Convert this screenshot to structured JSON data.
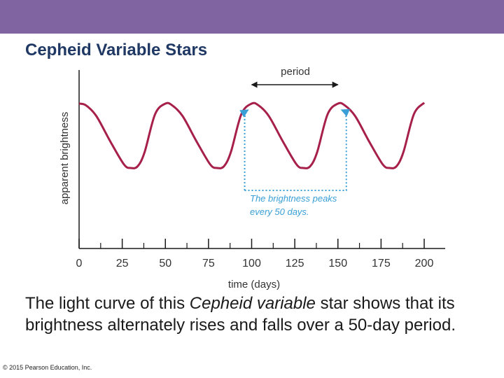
{
  "slide": {
    "title": "Cepheid Variable Stars",
    "caption": {
      "before": "The light curve of this ",
      "italic": "Cepheid variable",
      "after": " star shows that its brightness alternately rises and falls over a 50-day period."
    },
    "copyright": "© 2015 Pearson Education, Inc.",
    "colors": {
      "header_bar": "#8064a2",
      "title": "#1f3864",
      "curve": "#a6204a",
      "annotation": "#3a9fd6"
    }
  },
  "chart_data": {
    "type": "line",
    "title": "",
    "xlabel": "time (days)",
    "ylabel": "apparent brightness",
    "xlim": [
      0,
      205
    ],
    "ylim": [
      0,
      1
    ],
    "xticks": [
      0,
      25,
      50,
      75,
      100,
      125,
      150,
      175,
      200
    ],
    "minor_xticks": [
      12.5,
      37.5,
      62.5,
      87.5,
      112.5,
      137.5,
      162.5,
      187.5
    ],
    "period_days": 50,
    "peak_days": [
      0,
      50,
      100,
      150,
      200
    ],
    "series": [
      {
        "name": "light curve",
        "x": [
          0,
          4,
          10,
          18,
          26,
          30,
          34,
          38,
          44,
          50,
          54,
          60,
          68,
          76,
          80,
          84,
          88,
          94,
          100,
          104,
          110,
          118,
          126,
          130,
          134,
          138,
          144,
          150,
          154,
          160,
          168,
          176,
          180,
          184,
          188,
          194,
          200
        ],
        "y": [
          0.92,
          0.9,
          0.78,
          0.5,
          0.24,
          0.2,
          0.22,
          0.38,
          0.8,
          0.92,
          0.9,
          0.78,
          0.5,
          0.24,
          0.2,
          0.22,
          0.38,
          0.8,
          0.92,
          0.9,
          0.78,
          0.5,
          0.24,
          0.2,
          0.22,
          0.38,
          0.8,
          0.92,
          0.9,
          0.78,
          0.5,
          0.24,
          0.2,
          0.22,
          0.38,
          0.8,
          0.93
        ]
      }
    ],
    "annotations": {
      "period_label": "period",
      "note_line1": "The brightness peaks",
      "note_line2": "every 50 days."
    }
  }
}
